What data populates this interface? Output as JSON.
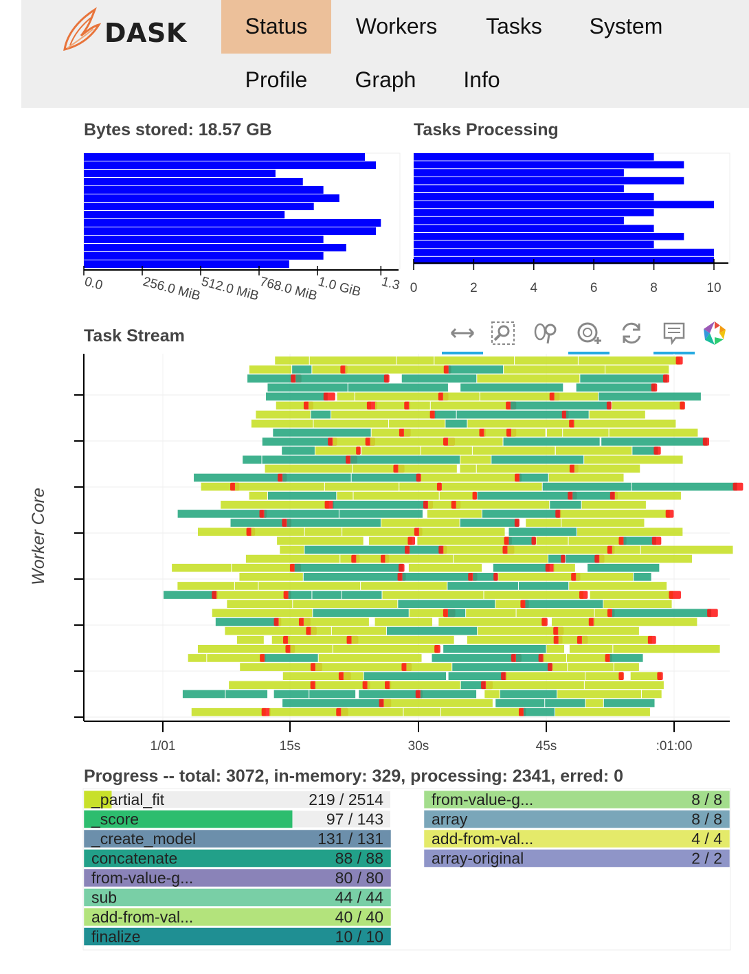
{
  "brand": {
    "name": "DASK",
    "logo_icon": "dask-flame-logo",
    "accent": "#e8743b"
  },
  "nav": {
    "active_bg": "#ecc09a",
    "items": [
      {
        "label": "Status",
        "active": true
      },
      {
        "label": "Workers",
        "active": false
      },
      {
        "label": "Tasks",
        "active": false
      },
      {
        "label": "System",
        "active": false
      },
      {
        "label": "Profile",
        "active": false
      },
      {
        "label": "Graph",
        "active": false
      },
      {
        "label": "Info",
        "active": false
      }
    ]
  },
  "bytes_stored": {
    "title": "Bytes stored: 18.57 GB",
    "bar_color": "#0000ff",
    "chart_data": {
      "type": "bar",
      "orientation": "horizontal",
      "x_ticks": [
        "0.0",
        "256.0 MiB",
        "512.0 MiB",
        "768.0 MiB",
        "1.0 GiB",
        "1.3"
      ],
      "unit": "MiB",
      "values_mib": [
        1232,
        1280,
        840,
        960,
        1050,
        1120,
        1008,
        880,
        1302,
        1280,
        1050,
        1150,
        1050,
        900
      ]
    }
  },
  "tasks_processing": {
    "title": "Tasks Processing",
    "bar_color": "#0000ff",
    "chart_data": {
      "type": "bar",
      "orientation": "horizontal",
      "x_ticks": [
        "0",
        "2",
        "4",
        "6",
        "8",
        "10"
      ],
      "xlim": [
        0,
        10
      ],
      "values": [
        8,
        9,
        7,
        9,
        7,
        8,
        10,
        8,
        7,
        8,
        9,
        8,
        10,
        10
      ]
    }
  },
  "task_stream": {
    "title": "Task Stream",
    "ylabel": "Worker Core",
    "x_ticks": [
      "1/01",
      "15s",
      "30s",
      "45s",
      ":01:00"
    ],
    "tools": [
      {
        "icon": "pan-icon",
        "active": true
      },
      {
        "icon": "box-zoom-icon",
        "active": false
      },
      {
        "icon": "wheel-zoom-icon",
        "active": false
      },
      {
        "icon": "zoom-in-icon",
        "active": true
      },
      {
        "icon": "reset-icon",
        "active": false
      },
      {
        "icon": "hover-icon",
        "active": true
      },
      {
        "icon": "bokeh-logo-icon",
        "active": false
      }
    ],
    "colors": {
      "compute": "#c8e02a",
      "compute_alt": "#2aa882",
      "transfer": "#ff1010"
    }
  },
  "progress": {
    "title": "Progress -- total: 3072, in-memory: 329, processing: 2341, erred: 0",
    "left": [
      {
        "name": "_partial_fit",
        "count": "219 / 2514",
        "done": 0.087,
        "color": "#c8e02a"
      },
      {
        "name": "_score",
        "count": "97 / 143",
        "done": 0.678,
        "color": "#2dbd6e"
      },
      {
        "name": "_create_model",
        "count": "131 / 131",
        "done": 1.0,
        "color": "#6c8fab"
      },
      {
        "name": "concatenate",
        "count": "88 / 88",
        "done": 1.0,
        "color": "#22a089"
      },
      {
        "name": "from-value-g...",
        "count": "80 / 80",
        "done": 1.0,
        "color": "#8a83b8"
      },
      {
        "name": "sub",
        "count": "44 / 44",
        "done": 1.0,
        "color": "#79cfa6"
      },
      {
        "name": "add-from-val...",
        "count": "40 / 40",
        "done": 1.0,
        "color": "#b3e37c"
      },
      {
        "name": "finalize",
        "count": "10 / 10",
        "done": 1.0,
        "color": "#1f8f93"
      }
    ],
    "right": [
      {
        "name": "from-value-g...",
        "count": "8 / 8",
        "done": 1.0,
        "color": "#a3dd8c"
      },
      {
        "name": "array",
        "count": "8 / 8",
        "done": 1.0,
        "color": "#7aa6b9"
      },
      {
        "name": "add-from-val...",
        "count": "4 / 4",
        "done": 1.0,
        "color": "#e4ea6a"
      },
      {
        "name": "array-original",
        "count": "2 / 2",
        "done": 1.0,
        "color": "#8f95c8"
      }
    ]
  }
}
